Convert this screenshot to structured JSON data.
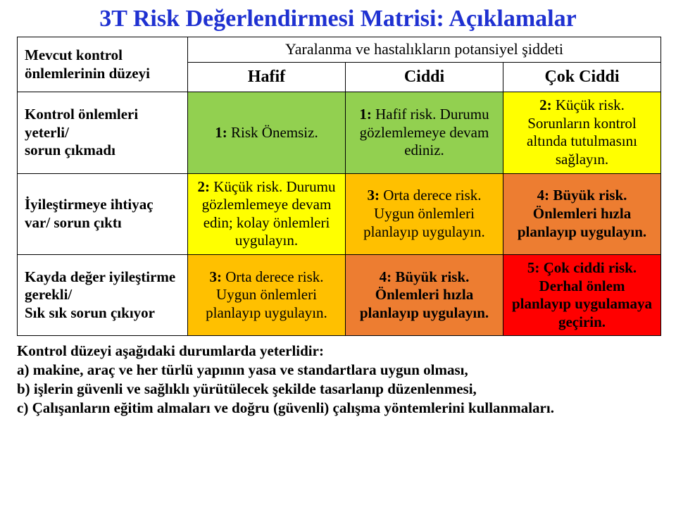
{
  "title": "3T Risk Değerlendirmesi Matrisi: Açıklamalar",
  "title_color": "#1f31d1",
  "superheader": "Yaralanma ve hastalıkların potansiyel şiddeti",
  "row_header_top": "Mevcut kontrol önlemlerinin düzeyi",
  "columns": {
    "c1": "Hafif",
    "c2": "Ciddi",
    "c3": "Çok Ciddi"
  },
  "rows": {
    "r1": "Kontrol önlemleri yeterli/\nsorun çıkmadı",
    "r2": "İyileştirmeye ihtiyaç var/ sorun çıktı",
    "r3": "Kayda değer iyileştirme gerekli/\nSık sık sorun çıkıyor"
  },
  "cells": {
    "r1c1": {
      "level": "1:",
      "label": " Risk Önemsiz.",
      "bg": "#92d050",
      "bold_rest": false
    },
    "r1c2": {
      "level": "1:",
      "label": " Hafif risk. Durumu gözlemlemeye devam ediniz.",
      "bg": "#92d050",
      "bold_rest": false
    },
    "r1c3": {
      "level": "2:",
      "label": " Küçük risk. Sorunların kontrol altında tutulmasını sağlayın.",
      "bg": "#ffff00",
      "bold_rest": false
    },
    "r2c1": {
      "level": "2:",
      "label": " Küçük risk. Durumu gözlemlemeye devam edin; kolay önlemleri uygulayın.",
      "bg": "#ffff00",
      "bold_rest": false
    },
    "r2c2": {
      "level": "3:",
      "label": " Orta derece risk. Uygun önlemleri planlayıp uygulayın.",
      "bg": "#ffc000",
      "bold_rest": false
    },
    "r2c3": {
      "level": "4:",
      "label": " Büyük risk. Önlemleri hızla planlayıp uygulayın.",
      "bg": "#ed7d31",
      "bold_rest": true
    },
    "r3c1": {
      "level": "3:",
      "label": " Orta derece risk. Uygun önlemleri planlayıp uygulayın.",
      "bg": "#ffc000",
      "bold_rest": false
    },
    "r3c2": {
      "level": "4:",
      "label": " Büyük risk. Önlemleri hızla planlayıp uygulayın.",
      "bg": "#ed7d31",
      "bold_rest": true
    },
    "r3c3": {
      "level": "5:",
      "label": " Çok ciddi risk. Derhal önlem planlayıp uygulamaya geçirin.",
      "bg": "#ff0000",
      "bold_rest": true
    }
  },
  "footer": {
    "lead": "Kontrol düzeyi aşağıdaki durumlarda yeterlidir:",
    "a": "a) makine, araç ve her türlü yapının yasa ve standartlara uygun olması,",
    "b": "b) işlerin güvenli ve sağlıklı yürütülecek şekilde tasarlanıp düzenlenmesi,",
    "c": "c) Çalışanların eğitim almaları ve doğru (güvenli) çalışma yöntemlerini kullanmaları."
  }
}
